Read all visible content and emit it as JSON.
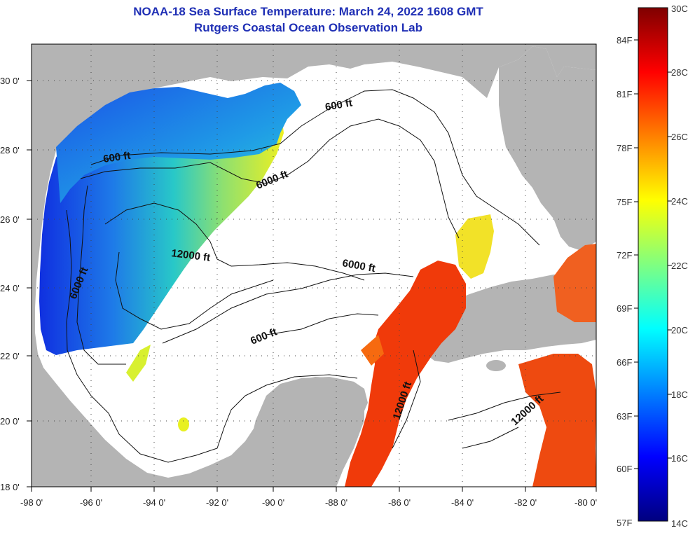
{
  "header": {
    "title": "NOAA-18 Sea Surface Temperature:  March 24, 2022 1608 GMT",
    "subtitle": "Rutgers Coastal Ocean Observation Lab"
  },
  "axes": {
    "lat_labels": [
      "30 0'",
      "28 0'",
      "26 0'",
      "24 0'",
      "22 0'",
      "20 0'",
      "18 0'"
    ],
    "lon_labels": [
      "-98 0'",
      "-96 0'",
      "-94 0'",
      "-92 0'",
      "-90 0'",
      "-88 0'",
      "-86 0'",
      "-84 0'",
      "-82 0'",
      "-80 0'"
    ]
  },
  "contours": {
    "c600_north": "600 ft",
    "c600_west": "600 ft",
    "c6000_north": "6000 ft",
    "c6000_west": "6000 ft",
    "c6000_center": "6000 ft",
    "c12000_west": "12000 ft",
    "c600_south": "600 ft",
    "c12000_yucatan": "12000 ft",
    "c12000_cuba": "12000 ft"
  },
  "colorbar": {
    "f_labels": [
      "84F",
      "81F",
      "78F",
      "75F",
      "72F",
      "69F",
      "66F",
      "63F",
      "60F",
      "57F"
    ],
    "c_labels": [
      "30C",
      "28C",
      "26C",
      "24C",
      "22C",
      "20C",
      "18C",
      "16C",
      "14C"
    ],
    "stops": [
      "#00007f",
      "#0000ff",
      "#0080ff",
      "#00ffff",
      "#80ff80",
      "#ffff00",
      "#ff8000",
      "#ff0000",
      "#7f0000"
    ]
  },
  "colors": {
    "land": "#b4b4b4",
    "cloud": "#ffffff",
    "title": "#1f2fb5"
  }
}
